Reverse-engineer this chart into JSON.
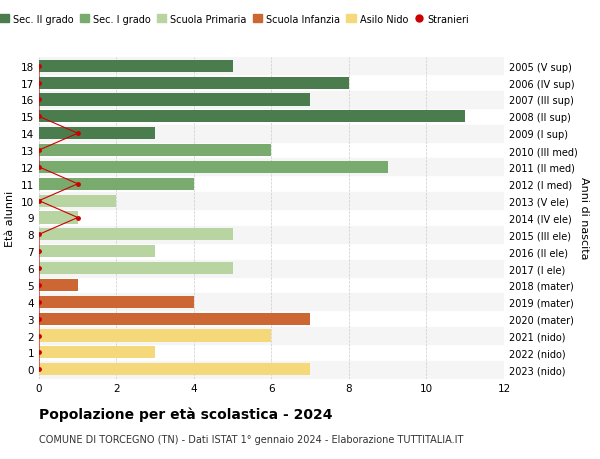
{
  "ages": [
    18,
    17,
    16,
    15,
    14,
    13,
    12,
    11,
    10,
    9,
    8,
    7,
    6,
    5,
    4,
    3,
    2,
    1,
    0
  ],
  "right_labels": [
    "2005 (V sup)",
    "2006 (IV sup)",
    "2007 (III sup)",
    "2008 (II sup)",
    "2009 (I sup)",
    "2010 (III med)",
    "2011 (II med)",
    "2012 (I med)",
    "2013 (V ele)",
    "2014 (IV ele)",
    "2015 (III ele)",
    "2016 (II ele)",
    "2017 (I ele)",
    "2018 (mater)",
    "2019 (mater)",
    "2020 (mater)",
    "2021 (nido)",
    "2022 (nido)",
    "2023 (nido)"
  ],
  "bar_values": [
    5,
    8,
    7,
    11,
    3,
    6,
    9,
    4,
    2,
    1,
    5,
    3,
    5,
    1,
    4,
    7,
    6,
    3,
    7
  ],
  "bar_colors": [
    "#4a7c4e",
    "#4a7c4e",
    "#4a7c4e",
    "#4a7c4e",
    "#4a7c4e",
    "#7aab6e",
    "#7aab6e",
    "#7aab6e",
    "#b8d4a0",
    "#b8d4a0",
    "#b8d4a0",
    "#b8d4a0",
    "#b8d4a0",
    "#cc6633",
    "#cc6633",
    "#cc6633",
    "#f5d87a",
    "#f5d87a",
    "#f5d87a"
  ],
  "stranieri_x": [
    0,
    0,
    0,
    0,
    1,
    0,
    0,
    1,
    0,
    1,
    0,
    0,
    0,
    0,
    0,
    0,
    0,
    0,
    0
  ],
  "title": "Popolazione per età scolastica - 2024",
  "subtitle": "COMUNE DI TORCEGNO (TN) - Dati ISTAT 1° gennaio 2024 - Elaborazione TUTTITALIA.IT",
  "ylabel": "Età alunni",
  "right_ylabel": "Anni di nascita",
  "xlim": [
    0,
    12
  ],
  "xticks": [
    0,
    2,
    4,
    6,
    8,
    10,
    12
  ],
  "legend_labels": [
    "Sec. II grado",
    "Sec. I grado",
    "Scuola Primaria",
    "Scuola Infanzia",
    "Asilo Nido",
    "Stranieri"
  ],
  "legend_colors": [
    "#4a7c4e",
    "#7aab6e",
    "#b8d4a0",
    "#cc6633",
    "#f5d87a",
    "#cc0000"
  ],
  "stranieri_color": "#cc0000",
  "bg_color": "#ffffff",
  "grid_color": "#cccccc",
  "alt_row_color": "#eeeeee"
}
